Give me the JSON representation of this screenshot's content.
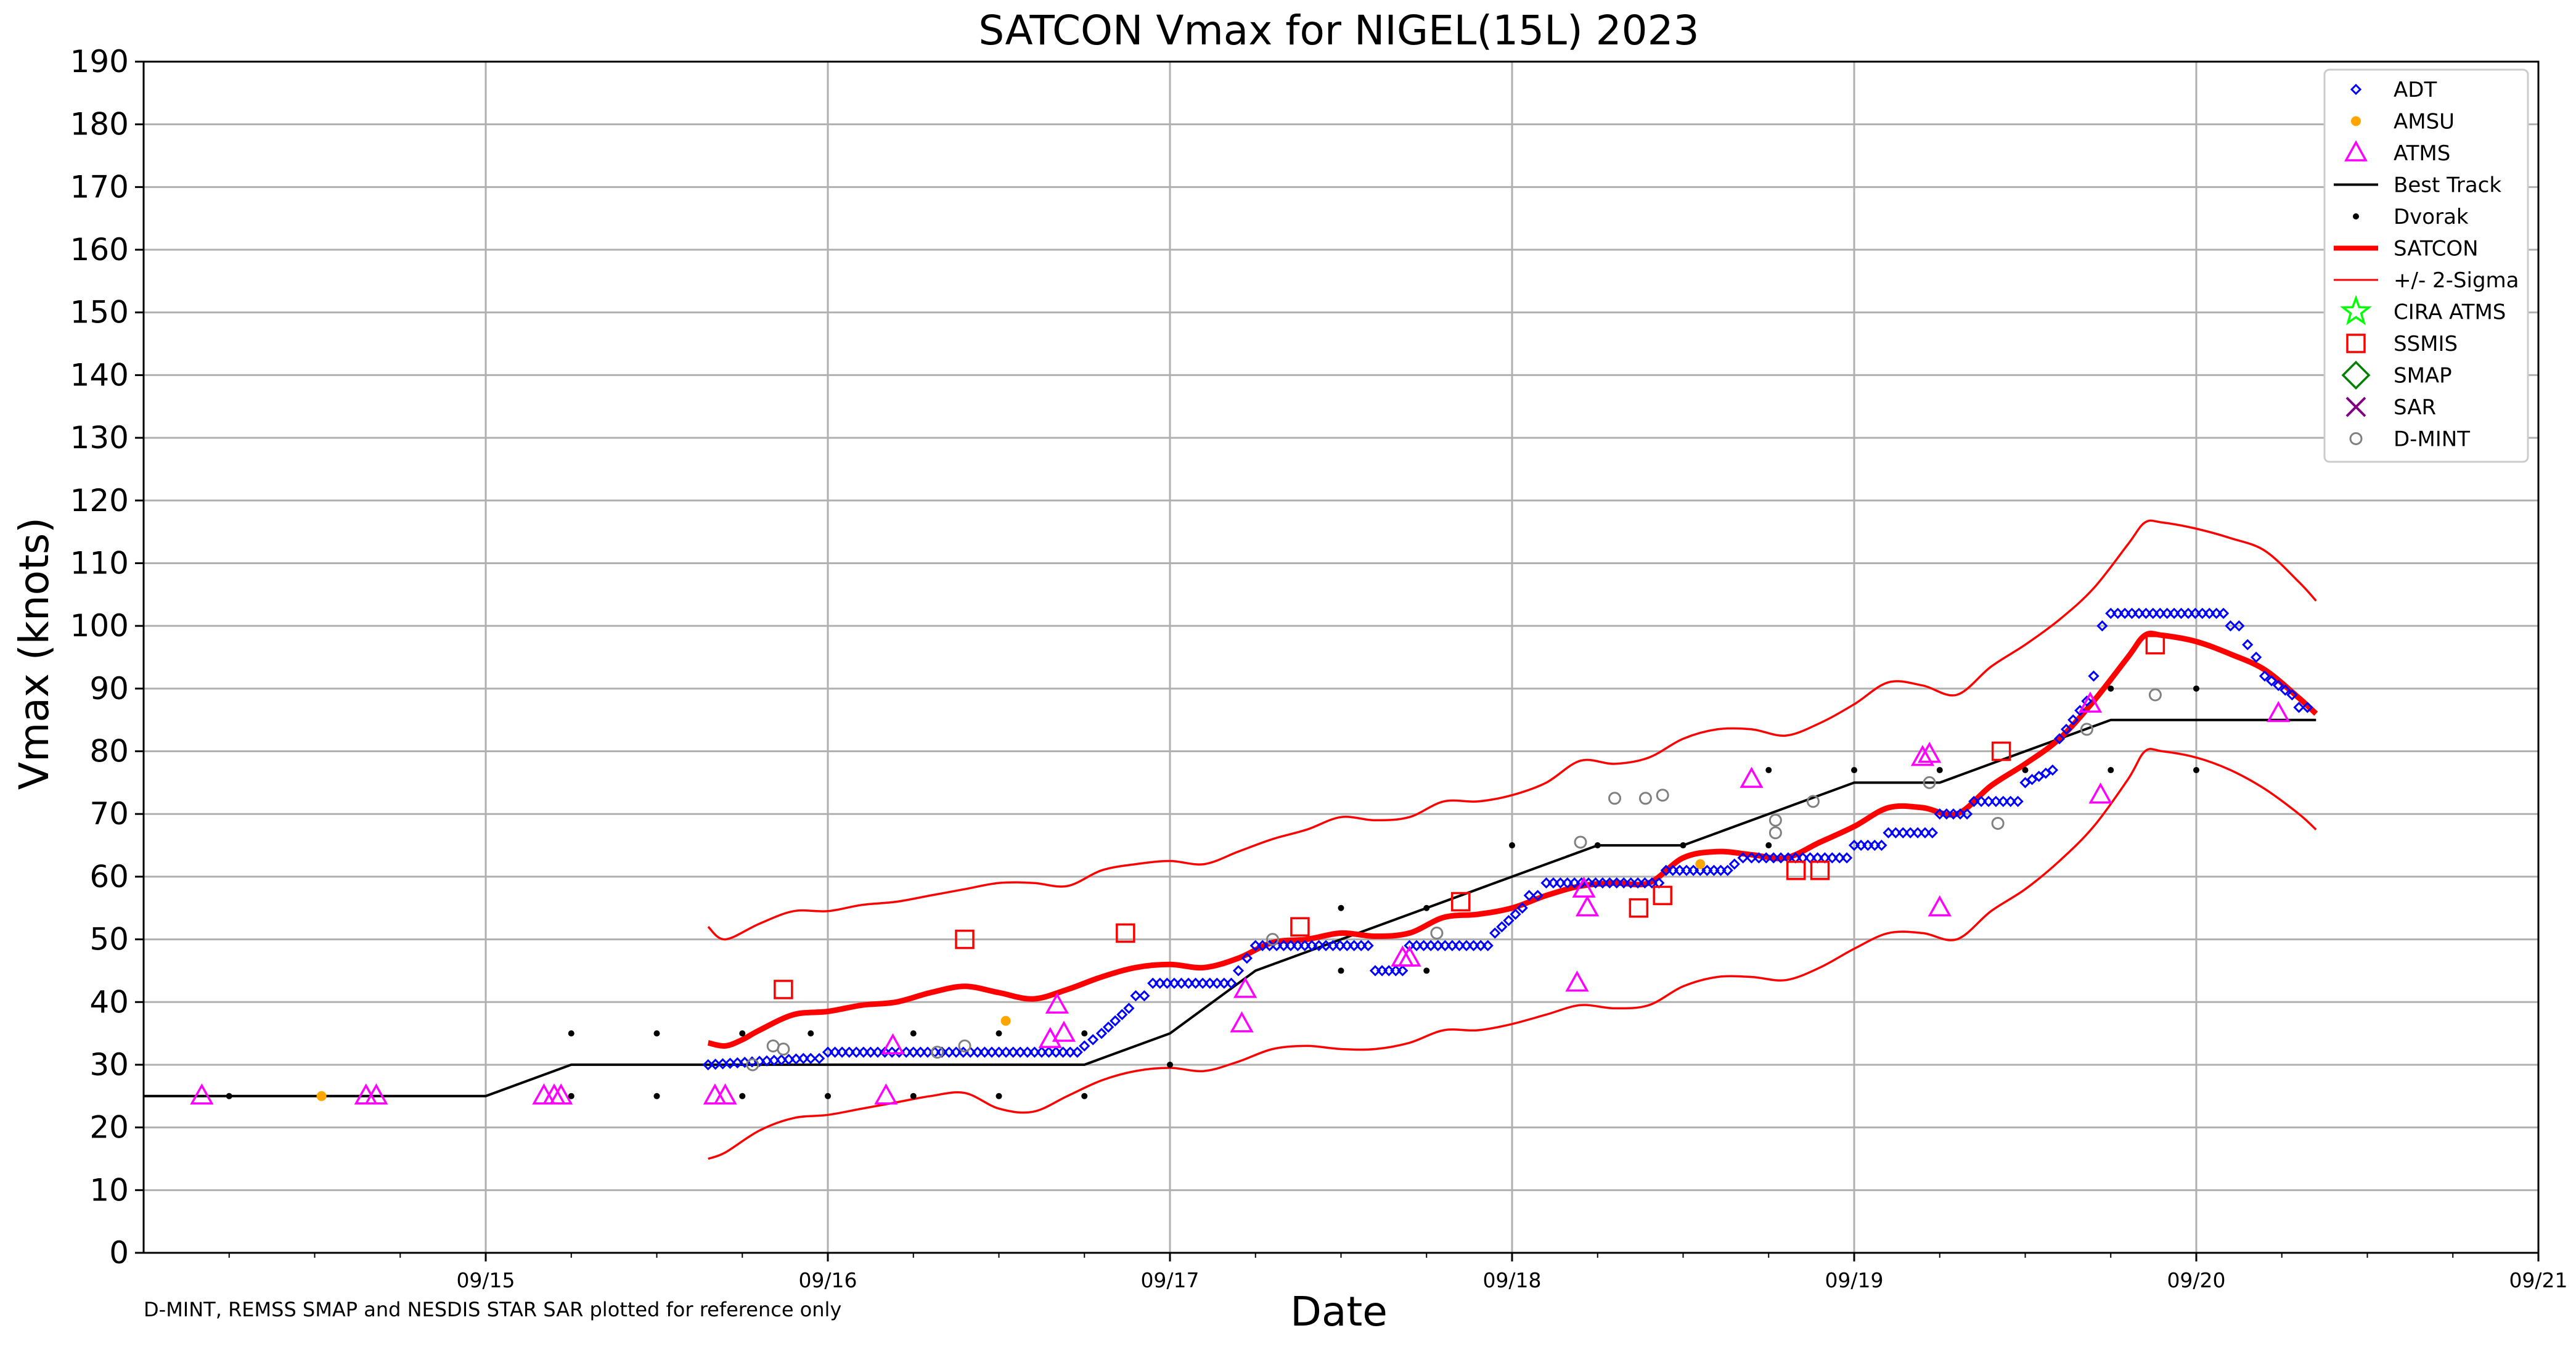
{
  "chart_data": {
    "type": "scatter",
    "title": "SATCON Vmax for NIGEL(15L) 2023",
    "xlabel": "Date",
    "ylabel": "Vmax (knots)",
    "footnote": "D-MINT, REMSS SMAP and NESDIS STAR SAR plotted for reference only",
    "x_unit": "days (fractional) — tick labels show dates in 2023",
    "xlim": [
      "09/14 00Z",
      "09/21 00Z"
    ],
    "ylim": [
      0,
      190
    ],
    "x_ticks": [
      "09/15",
      "09/16",
      "09/17",
      "09/18",
      "09/19",
      "09/20",
      "09/21"
    ],
    "x_tick_days": [
      15,
      16,
      17,
      18,
      19,
      20,
      21
    ],
    "y_ticks": [
      0,
      10,
      20,
      30,
      40,
      50,
      60,
      70,
      80,
      90,
      100,
      110,
      120,
      130,
      140,
      150,
      160,
      170,
      180,
      190
    ],
    "grid": true,
    "legend_position": "top-right",
    "legend": [
      {
        "name": "ADT",
        "marker": "diamond-open",
        "color": "#0000ff"
      },
      {
        "name": "AMSU",
        "marker": "dot",
        "color": "#ffa500"
      },
      {
        "name": "ATMS",
        "marker": "triangle-open",
        "color": "#ff00ff"
      },
      {
        "name": "Best Track",
        "marker": "line",
        "color": "#000000"
      },
      {
        "name": "Dvorak",
        "marker": "dot-small",
        "color": "#000000"
      },
      {
        "name": "SATCON",
        "marker": "line-thick",
        "color": "#ff0000"
      },
      {
        "name": "+/- 2-Sigma",
        "marker": "line-thin",
        "color": "#ff0000"
      },
      {
        "name": "CIRA ATMS",
        "marker": "star-open",
        "color": "#00ff00"
      },
      {
        "name": "SSMIS",
        "marker": "square-open",
        "color": "#ff0000"
      },
      {
        "name": "SMAP",
        "marker": "diamond-big-open",
        "color": "#008000"
      },
      {
        "name": "SAR",
        "marker": "x",
        "color": "#800080"
      },
      {
        "name": "D-MINT",
        "marker": "circle-open",
        "color": "#808080"
      }
    ],
    "series": {
      "best_track": [
        [
          14.0,
          25
        ],
        [
          15.0,
          25
        ],
        [
          15.25,
          30
        ],
        [
          15.5,
          30
        ],
        [
          15.75,
          30
        ],
        [
          16.0,
          30
        ],
        [
          16.25,
          30
        ],
        [
          16.5,
          30
        ],
        [
          16.75,
          30
        ],
        [
          17.0,
          35
        ],
        [
          17.25,
          45
        ],
        [
          17.5,
          50
        ],
        [
          17.75,
          55
        ],
        [
          18.0,
          60
        ],
        [
          18.25,
          65
        ],
        [
          18.5,
          65
        ],
        [
          18.75,
          70
        ],
        [
          19.0,
          75
        ],
        [
          19.25,
          75
        ],
        [
          19.5,
          80
        ],
        [
          19.75,
          85
        ],
        [
          20.0,
          85
        ],
        [
          20.35,
          85
        ]
      ],
      "satcon": [
        [
          15.65,
          33.5
        ],
        [
          15.7,
          33
        ],
        [
          15.75,
          34
        ],
        [
          15.8,
          35.5
        ],
        [
          15.9,
          38
        ],
        [
          16.0,
          38.5
        ],
        [
          16.1,
          39.5
        ],
        [
          16.2,
          40
        ],
        [
          16.3,
          41.5
        ],
        [
          16.4,
          42.5
        ],
        [
          16.5,
          41.5
        ],
        [
          16.6,
          40.5
        ],
        [
          16.7,
          42
        ],
        [
          16.8,
          44
        ],
        [
          16.9,
          45.5
        ],
        [
          17.0,
          46
        ],
        [
          17.1,
          45.5
        ],
        [
          17.2,
          47
        ],
        [
          17.3,
          49.5
        ],
        [
          17.4,
          50
        ],
        [
          17.5,
          51
        ],
        [
          17.6,
          50.5
        ],
        [
          17.7,
          51
        ],
        [
          17.8,
          53.5
        ],
        [
          17.9,
          54
        ],
        [
          18.0,
          55
        ],
        [
          18.1,
          57
        ],
        [
          18.2,
          58.5
        ],
        [
          18.3,
          59
        ],
        [
          18.4,
          59
        ],
        [
          18.5,
          63
        ],
        [
          18.6,
          64
        ],
        [
          18.7,
          63.5
        ],
        [
          18.8,
          63
        ],
        [
          18.9,
          65.5
        ],
        [
          19.0,
          68
        ],
        [
          19.1,
          71
        ],
        [
          19.2,
          71
        ],
        [
          19.3,
          70
        ],
        [
          19.4,
          74.5
        ],
        [
          19.5,
          78
        ],
        [
          19.6,
          82
        ],
        [
          19.7,
          88
        ],
        [
          19.8,
          95
        ],
        [
          19.85,
          98.5
        ],
        [
          19.9,
          98.5
        ],
        [
          20.0,
          97.5
        ],
        [
          20.1,
          95.5
        ],
        [
          20.2,
          93
        ],
        [
          20.3,
          88.5
        ],
        [
          20.35,
          86
        ]
      ],
      "sigma_upper": [
        [
          15.65,
          52
        ],
        [
          15.7,
          50
        ],
        [
          15.8,
          52.5
        ],
        [
          15.9,
          54.5
        ],
        [
          16.0,
          54.5
        ],
        [
          16.1,
          55.5
        ],
        [
          16.2,
          56
        ],
        [
          16.3,
          57
        ],
        [
          16.4,
          58
        ],
        [
          16.5,
          59
        ],
        [
          16.6,
          59
        ],
        [
          16.7,
          58.5
        ],
        [
          16.8,
          61
        ],
        [
          16.9,
          62
        ],
        [
          17.0,
          62.5
        ],
        [
          17.1,
          62
        ],
        [
          17.2,
          64
        ],
        [
          17.3,
          66
        ],
        [
          17.4,
          67.5
        ],
        [
          17.5,
          69.5
        ],
        [
          17.6,
          69
        ],
        [
          17.7,
          69.5
        ],
        [
          17.8,
          72
        ],
        [
          17.9,
          72
        ],
        [
          18.0,
          73
        ],
        [
          18.1,
          75
        ],
        [
          18.2,
          78.5
        ],
        [
          18.3,
          78
        ],
        [
          18.4,
          79
        ],
        [
          18.5,
          82
        ],
        [
          18.6,
          83.5
        ],
        [
          18.7,
          83.5
        ],
        [
          18.8,
          82.5
        ],
        [
          18.9,
          84.5
        ],
        [
          19.0,
          87.5
        ],
        [
          19.1,
          91
        ],
        [
          19.2,
          90.5
        ],
        [
          19.3,
          89
        ],
        [
          19.4,
          93.5
        ],
        [
          19.5,
          97
        ],
        [
          19.6,
          101
        ],
        [
          19.7,
          106
        ],
        [
          19.8,
          113
        ],
        [
          19.85,
          116.5
        ],
        [
          19.9,
          116.5
        ],
        [
          20.0,
          115.5
        ],
        [
          20.1,
          114
        ],
        [
          20.2,
          112
        ],
        [
          20.3,
          107
        ],
        [
          20.35,
          104
        ]
      ],
      "sigma_lower": [
        [
          15.65,
          15
        ],
        [
          15.7,
          16
        ],
        [
          15.8,
          19.5
        ],
        [
          15.9,
          21.5
        ],
        [
          16.0,
          22
        ],
        [
          16.1,
          23
        ],
        [
          16.2,
          24
        ],
        [
          16.3,
          25
        ],
        [
          16.4,
          25.5
        ],
        [
          16.5,
          23
        ],
        [
          16.6,
          22.5
        ],
        [
          16.7,
          25
        ],
        [
          16.8,
          27.5
        ],
        [
          16.9,
          29
        ],
        [
          17.0,
          29.5
        ],
        [
          17.1,
          29
        ],
        [
          17.2,
          30.5
        ],
        [
          17.3,
          32.5
        ],
        [
          17.4,
          33
        ],
        [
          17.5,
          32.5
        ],
        [
          17.6,
          32.5
        ],
        [
          17.7,
          33.5
        ],
        [
          17.8,
          35.5
        ],
        [
          17.9,
          35.5
        ],
        [
          18.0,
          36.5
        ],
        [
          18.1,
          38
        ],
        [
          18.2,
          39.5
        ],
        [
          18.3,
          39
        ],
        [
          18.4,
          39.5
        ],
        [
          18.5,
          42.5
        ],
        [
          18.6,
          44
        ],
        [
          18.7,
          44
        ],
        [
          18.8,
          43.5
        ],
        [
          18.9,
          45.5
        ],
        [
          19.0,
          48.5
        ],
        [
          19.1,
          51
        ],
        [
          19.2,
          51
        ],
        [
          19.3,
          50
        ],
        [
          19.4,
          54.5
        ],
        [
          19.5,
          58
        ],
        [
          19.6,
          62.5
        ],
        [
          19.7,
          68
        ],
        [
          19.8,
          75.5
        ],
        [
          19.85,
          80
        ],
        [
          19.9,
          80
        ],
        [
          20.0,
          79
        ],
        [
          20.1,
          77
        ],
        [
          20.2,
          74
        ],
        [
          20.3,
          70
        ],
        [
          20.35,
          67.5
        ]
      ],
      "adt_segments": [
        [
          15.65,
          15.95,
          30,
          31
        ],
        [
          15.95,
          16.0,
          31,
          31
        ],
        [
          16.0,
          16.75,
          32,
          32
        ],
        [
          16.75,
          16.8,
          33,
          34
        ],
        [
          16.8,
          16.9,
          35,
          39
        ],
        [
          16.9,
          16.95,
          41,
          41
        ],
        [
          16.95,
          17.2,
          43,
          43
        ],
        [
          17.2,
          17.25,
          45,
          47
        ],
        [
          17.25,
          17.6,
          49,
          49
        ],
        [
          17.6,
          17.7,
          45,
          45
        ],
        [
          17.7,
          17.95,
          49,
          49
        ],
        [
          17.95,
          18.05,
          51,
          55
        ],
        [
          18.05,
          18.1,
          57,
          57
        ],
        [
          18.1,
          18.45,
          59,
          59
        ],
        [
          18.45,
          18.65,
          61,
          61
        ],
        [
          18.65,
          18.7,
          62,
          63
        ],
        [
          18.7,
          19.0,
          63,
          63
        ],
        [
          19.0,
          19.1,
          65,
          65
        ],
        [
          19.1,
          19.25,
          67,
          67
        ],
        [
          19.25,
          19.35,
          70,
          70
        ],
        [
          19.35,
          19.5,
          72,
          72
        ],
        [
          19.5,
          19.6,
          75,
          77
        ],
        [
          19.6,
          19.7,
          82,
          88
        ],
        [
          19.7,
          19.75,
          92,
          100
        ],
        [
          19.75,
          20.1,
          102,
          102
        ],
        [
          20.1,
          20.15,
          100,
          100
        ],
        [
          20.15,
          20.2,
          97,
          95
        ],
        [
          20.2,
          20.3,
          92,
          89
        ],
        [
          20.3,
          20.35,
          87,
          87
        ]
      ],
      "amsu": [
        [
          14.52,
          25
        ],
        [
          16.52,
          37
        ],
        [
          18.55,
          62
        ]
      ],
      "atms": [
        [
          14.17,
          25
        ],
        [
          14.65,
          25
        ],
        [
          14.68,
          25
        ],
        [
          15.17,
          25
        ],
        [
          15.2,
          25
        ],
        [
          15.22,
          25
        ],
        [
          15.67,
          25
        ],
        [
          15.7,
          25
        ],
        [
          16.17,
          25
        ],
        [
          16.19,
          33
        ],
        [
          16.65,
          34
        ],
        [
          16.67,
          39.5
        ],
        [
          16.69,
          35
        ],
        [
          17.21,
          36.5
        ],
        [
          17.22,
          42
        ],
        [
          17.68,
          47
        ],
        [
          17.7,
          47
        ],
        [
          18.19,
          43
        ],
        [
          18.21,
          58
        ],
        [
          18.22,
          55
        ],
        [
          18.7,
          75.5
        ],
        [
          19.2,
          79
        ],
        [
          19.22,
          79.5
        ],
        [
          19.25,
          55
        ],
        [
          19.69,
          87.5
        ],
        [
          19.72,
          73
        ],
        [
          20.24,
          86
        ]
      ],
      "dvorak": [
        [
          14.25,
          25
        ],
        [
          15.25,
          35
        ],
        [
          15.25,
          25
        ],
        [
          15.5,
          35
        ],
        [
          15.5,
          25
        ],
        [
          15.75,
          35
        ],
        [
          15.75,
          25
        ],
        [
          16.0,
          25
        ],
        [
          15.95,
          35
        ],
        [
          16.25,
          35
        ],
        [
          16.25,
          25
        ],
        [
          16.5,
          35
        ],
        [
          16.5,
          25
        ],
        [
          16.75,
          25
        ],
        [
          16.75,
          35
        ],
        [
          17.0,
          30
        ],
        [
          17.5,
          55
        ],
        [
          17.5,
          45
        ],
        [
          17.75,
          55
        ],
        [
          17.75,
          45
        ],
        [
          18.0,
          65
        ],
        [
          18.25,
          65
        ],
        [
          18.5,
          65
        ],
        [
          18.75,
          77
        ],
        [
          18.75,
          65
        ],
        [
          19.0,
          77
        ],
        [
          19.25,
          77
        ],
        [
          19.5,
          77
        ],
        [
          19.75,
          90
        ],
        [
          19.75,
          77
        ],
        [
          20.0,
          90
        ],
        [
          20.0,
          77
        ]
      ],
      "ssmis": [
        [
          15.87,
          42
        ],
        [
          16.4,
          50
        ],
        [
          16.87,
          51
        ],
        [
          17.38,
          52
        ],
        [
          17.85,
          56
        ],
        [
          18.37,
          55
        ],
        [
          18.44,
          57
        ],
        [
          18.83,
          61
        ],
        [
          18.9,
          61
        ],
        [
          19.43,
          80
        ],
        [
          19.88,
          97
        ]
      ],
      "dmint": [
        [
          15.78,
          30
        ],
        [
          15.84,
          33
        ],
        [
          15.87,
          32.5
        ],
        [
          16.32,
          32
        ],
        [
          16.4,
          33
        ],
        [
          17.3,
          50
        ],
        [
          17.78,
          51
        ],
        [
          18.2,
          65.5
        ],
        [
          18.3,
          72.5
        ],
        [
          18.39,
          72.5
        ],
        [
          18.44,
          73
        ],
        [
          18.77,
          69
        ],
        [
          18.77,
          67
        ],
        [
          18.88,
          72
        ],
        [
          19.22,
          75
        ],
        [
          19.42,
          68.5
        ],
        [
          19.68,
          83.5
        ],
        [
          19.88,
          89
        ]
      ]
    }
  }
}
